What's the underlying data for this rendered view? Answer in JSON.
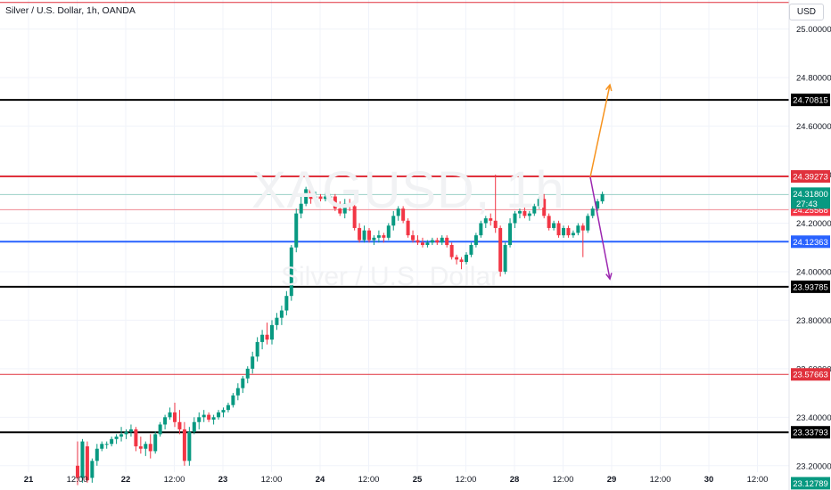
{
  "header": {
    "title": "Silver / U.S. Dollar, 1h, OANDA",
    "currency": "USD"
  },
  "watermark": {
    "symbol": "XAGUSD, 1h",
    "name": "Silver / U.S. Dollar"
  },
  "chart_data": {
    "type": "candlestick",
    "y_axis": {
      "min": 23.1,
      "max": 25.12,
      "ticks": [
        "25.00000",
        "24.80000",
        "24.60000",
        "24.40000",
        "24.20000",
        "24.00000",
        "23.80000",
        "23.60000",
        "23.40000",
        "23.20000"
      ],
      "tick_values": [
        25.0,
        24.8,
        24.6,
        24.4,
        24.2,
        24.0,
        23.8,
        23.6,
        23.4,
        23.2
      ]
    },
    "x_axis": {
      "ticks": [
        "21",
        "12:00",
        "22",
        "12:00",
        "23",
        "12:00",
        "24",
        "12:00",
        "25",
        "12:00",
        "28",
        "12:00",
        "29",
        "12:00",
        "30",
        "12:00"
      ],
      "day_labels": [
        "21",
        "22",
        "23",
        "24",
        "25",
        "28",
        "29",
        "30"
      ]
    },
    "horizontal_levels": [
      {
        "price": 25.11,
        "label": "",
        "color": "#e0313c",
        "width": 1
      },
      {
        "price": 24.70815,
        "label": "24.70815",
        "color": "#000000",
        "width": 2
      },
      {
        "price": 24.39273,
        "label": "24.39273",
        "color": "#e0313c",
        "width": 2
      },
      {
        "price": 24.25568,
        "label": "24.25568",
        "color": "#f08a93",
        "width": 1
      },
      {
        "price": 24.12363,
        "label": "24.12363",
        "color": "#2962ff",
        "width": 2
      },
      {
        "price": 23.93785,
        "label": "23.93785",
        "color": "#000000",
        "width": 2
      },
      {
        "price": 23.57663,
        "label": "23.57663",
        "color": "#e0313c",
        "width": 1
      },
      {
        "price": 23.33793,
        "label": "23.33793",
        "color": "#000000",
        "width": 2
      }
    ],
    "last_price": {
      "value": "24.31800",
      "countdown": "27:43",
      "color": "#089981"
    },
    "low_marker": {
      "value": "23.12789",
      "color": "#089981"
    },
    "projections": [
      {
        "name": "bullish",
        "from": [
          25.9,
          24.39
        ],
        "to": [
          26.35,
          24.77
        ],
        "color": "#f7931e"
      },
      {
        "name": "bearish",
        "from": [
          25.9,
          24.39
        ],
        "to": [
          26.35,
          23.97
        ],
        "color": "#9c27b0"
      }
    ],
    "candles": [
      [
        23.2,
        23.3,
        23.12,
        23.15
      ],
      [
        23.15,
        23.31,
        23.13,
        23.3
      ],
      [
        23.28,
        23.3,
        23.13,
        23.14
      ],
      [
        23.15,
        23.23,
        23.13,
        23.22
      ],
      [
        23.22,
        23.29,
        23.2,
        23.27
      ],
      [
        23.27,
        23.3,
        23.26,
        23.29
      ],
      [
        23.29,
        23.3,
        23.27,
        23.29
      ],
      [
        23.29,
        23.32,
        23.28,
        23.31
      ],
      [
        23.31,
        23.33,
        23.29,
        23.32
      ],
      [
        23.32,
        23.36,
        23.3,
        23.33
      ],
      [
        23.33,
        23.35,
        23.31,
        23.34
      ],
      [
        23.34,
        23.37,
        23.32,
        23.35
      ],
      [
        23.35,
        23.36,
        23.26,
        23.28
      ],
      [
        23.28,
        23.32,
        23.25,
        23.27
      ],
      [
        23.27,
        23.3,
        23.24,
        23.29
      ],
      [
        23.29,
        23.33,
        23.23,
        23.26
      ],
      [
        23.26,
        23.34,
        23.25,
        23.33
      ],
      [
        23.33,
        23.38,
        23.32,
        23.37
      ],
      [
        23.37,
        23.41,
        23.35,
        23.4
      ],
      [
        23.4,
        23.44,
        23.39,
        23.42
      ],
      [
        23.42,
        23.46,
        23.36,
        23.38
      ],
      [
        23.38,
        23.43,
        23.33,
        23.35
      ],
      [
        23.35,
        23.38,
        23.2,
        23.22
      ],
      [
        23.22,
        23.36,
        23.2,
        23.34
      ],
      [
        23.34,
        23.4,
        23.33,
        23.38
      ],
      [
        23.38,
        23.42,
        23.35,
        23.4
      ],
      [
        23.4,
        23.43,
        23.38,
        23.41
      ],
      [
        23.41,
        23.42,
        23.38,
        23.39
      ],
      [
        23.39,
        23.41,
        23.37,
        23.4
      ],
      [
        23.4,
        23.43,
        23.39,
        23.42
      ],
      [
        23.42,
        23.44,
        23.4,
        23.43
      ],
      [
        23.43,
        23.46,
        23.42,
        23.45
      ],
      [
        23.45,
        23.5,
        23.44,
        23.49
      ],
      [
        23.49,
        23.54,
        23.47,
        23.52
      ],
      [
        23.52,
        23.57,
        23.5,
        23.56
      ],
      [
        23.56,
        23.61,
        23.54,
        23.6
      ],
      [
        23.6,
        23.67,
        23.58,
        23.65
      ],
      [
        23.65,
        23.73,
        23.63,
        23.71
      ],
      [
        23.71,
        23.76,
        23.68,
        23.74
      ],
      [
        23.74,
        23.79,
        23.7,
        23.72
      ],
      [
        23.72,
        23.8,
        23.7,
        23.78
      ],
      [
        23.78,
        23.83,
        23.76,
        23.81
      ],
      [
        23.81,
        23.86,
        23.78,
        23.84
      ],
      [
        23.84,
        23.92,
        23.82,
        23.9
      ],
      [
        23.9,
        24.11,
        23.88,
        24.1
      ],
      [
        24.1,
        24.26,
        24.08,
        24.24
      ],
      [
        24.24,
        24.31,
        24.22,
        24.28
      ],
      [
        24.28,
        24.35,
        24.27,
        24.34
      ],
      [
        24.34,
        24.35,
        24.28,
        24.3
      ],
      [
        24.3,
        24.33,
        24.28,
        24.31
      ],
      [
        24.31,
        24.32,
        24.29,
        24.3
      ],
      [
        24.3,
        24.33,
        24.29,
        24.31
      ],
      [
        24.31,
        24.32,
        24.29,
        24.31
      ],
      [
        24.31,
        24.32,
        24.25,
        24.26
      ],
      [
        24.26,
        24.29,
        24.23,
        24.24
      ],
      [
        24.24,
        24.3,
        24.22,
        24.28
      ],
      [
        24.28,
        24.3,
        24.25,
        24.27
      ],
      [
        24.27,
        24.29,
        24.17,
        24.18
      ],
      [
        24.18,
        24.2,
        24.12,
        24.13
      ],
      [
        24.13,
        24.19,
        24.12,
        24.17
      ],
      [
        24.17,
        24.18,
        24.12,
        24.13
      ],
      [
        24.13,
        24.15,
        24.11,
        24.14
      ],
      [
        24.14,
        24.17,
        24.12,
        24.15
      ],
      [
        24.15,
        24.16,
        24.12,
        24.14
      ],
      [
        24.14,
        24.2,
        24.13,
        24.19
      ],
      [
        24.19,
        24.25,
        24.17,
        24.23
      ],
      [
        24.23,
        24.27,
        24.21,
        24.26
      ],
      [
        24.26,
        24.27,
        24.2,
        24.21
      ],
      [
        24.21,
        24.22,
        24.14,
        24.15
      ],
      [
        24.15,
        24.17,
        24.12,
        24.13
      ],
      [
        24.13,
        24.15,
        24.11,
        24.12
      ],
      [
        24.12,
        24.14,
        24.1,
        24.11
      ],
      [
        24.11,
        24.13,
        24.1,
        24.12
      ],
      [
        24.12,
        24.14,
        24.11,
        24.13
      ],
      [
        24.13,
        24.14,
        24.11,
        24.12
      ],
      [
        24.12,
        24.15,
        24.11,
        24.14
      ],
      [
        24.14,
        24.15,
        24.1,
        24.11
      ],
      [
        24.11,
        24.12,
        24.05,
        24.06
      ],
      [
        24.06,
        24.07,
        24.03,
        24.05
      ],
      [
        24.05,
        24.06,
        24.01,
        24.04
      ],
      [
        24.04,
        24.08,
        24.03,
        24.07
      ],
      [
        24.07,
        24.12,
        24.06,
        24.11
      ],
      [
        24.11,
        24.16,
        24.1,
        24.15
      ],
      [
        24.15,
        24.21,
        24.14,
        24.2
      ],
      [
        24.2,
        24.23,
        24.18,
        24.22
      ],
      [
        24.22,
        24.24,
        24.19,
        24.21
      ],
      [
        24.21,
        24.4,
        24.16,
        24.18
      ],
      [
        24.18,
        24.19,
        23.98,
        24.0
      ],
      [
        24.0,
        24.12,
        23.99,
        24.11
      ],
      [
        24.11,
        24.22,
        24.1,
        24.2
      ],
      [
        24.2,
        24.25,
        24.18,
        24.24
      ],
      [
        24.24,
        24.26,
        24.22,
        24.25
      ],
      [
        24.25,
        24.27,
        24.22,
        24.23
      ],
      [
        24.23,
        24.25,
        24.21,
        24.24
      ],
      [
        24.24,
        24.28,
        24.23,
        24.27
      ],
      [
        24.27,
        24.31,
        24.26,
        24.3
      ],
      [
        24.3,
        24.32,
        24.22,
        24.23
      ],
      [
        24.23,
        24.24,
        24.17,
        24.18
      ],
      [
        24.18,
        24.21,
        24.17,
        24.2
      ],
      [
        24.2,
        24.21,
        24.14,
        24.15
      ],
      [
        24.15,
        24.19,
        24.14,
        24.18
      ],
      [
        24.18,
        24.19,
        24.14,
        24.15
      ],
      [
        24.15,
        24.17,
        24.14,
        24.16
      ],
      [
        24.16,
        24.2,
        24.15,
        24.19
      ],
      [
        24.19,
        24.2,
        24.06,
        24.17
      ],
      [
        24.17,
        24.24,
        24.16,
        24.23
      ],
      [
        24.23,
        24.27,
        24.22,
        24.26
      ],
      [
        24.26,
        24.3,
        24.25,
        24.29
      ],
      [
        24.29,
        24.33,
        24.28,
        24.32
      ]
    ]
  }
}
